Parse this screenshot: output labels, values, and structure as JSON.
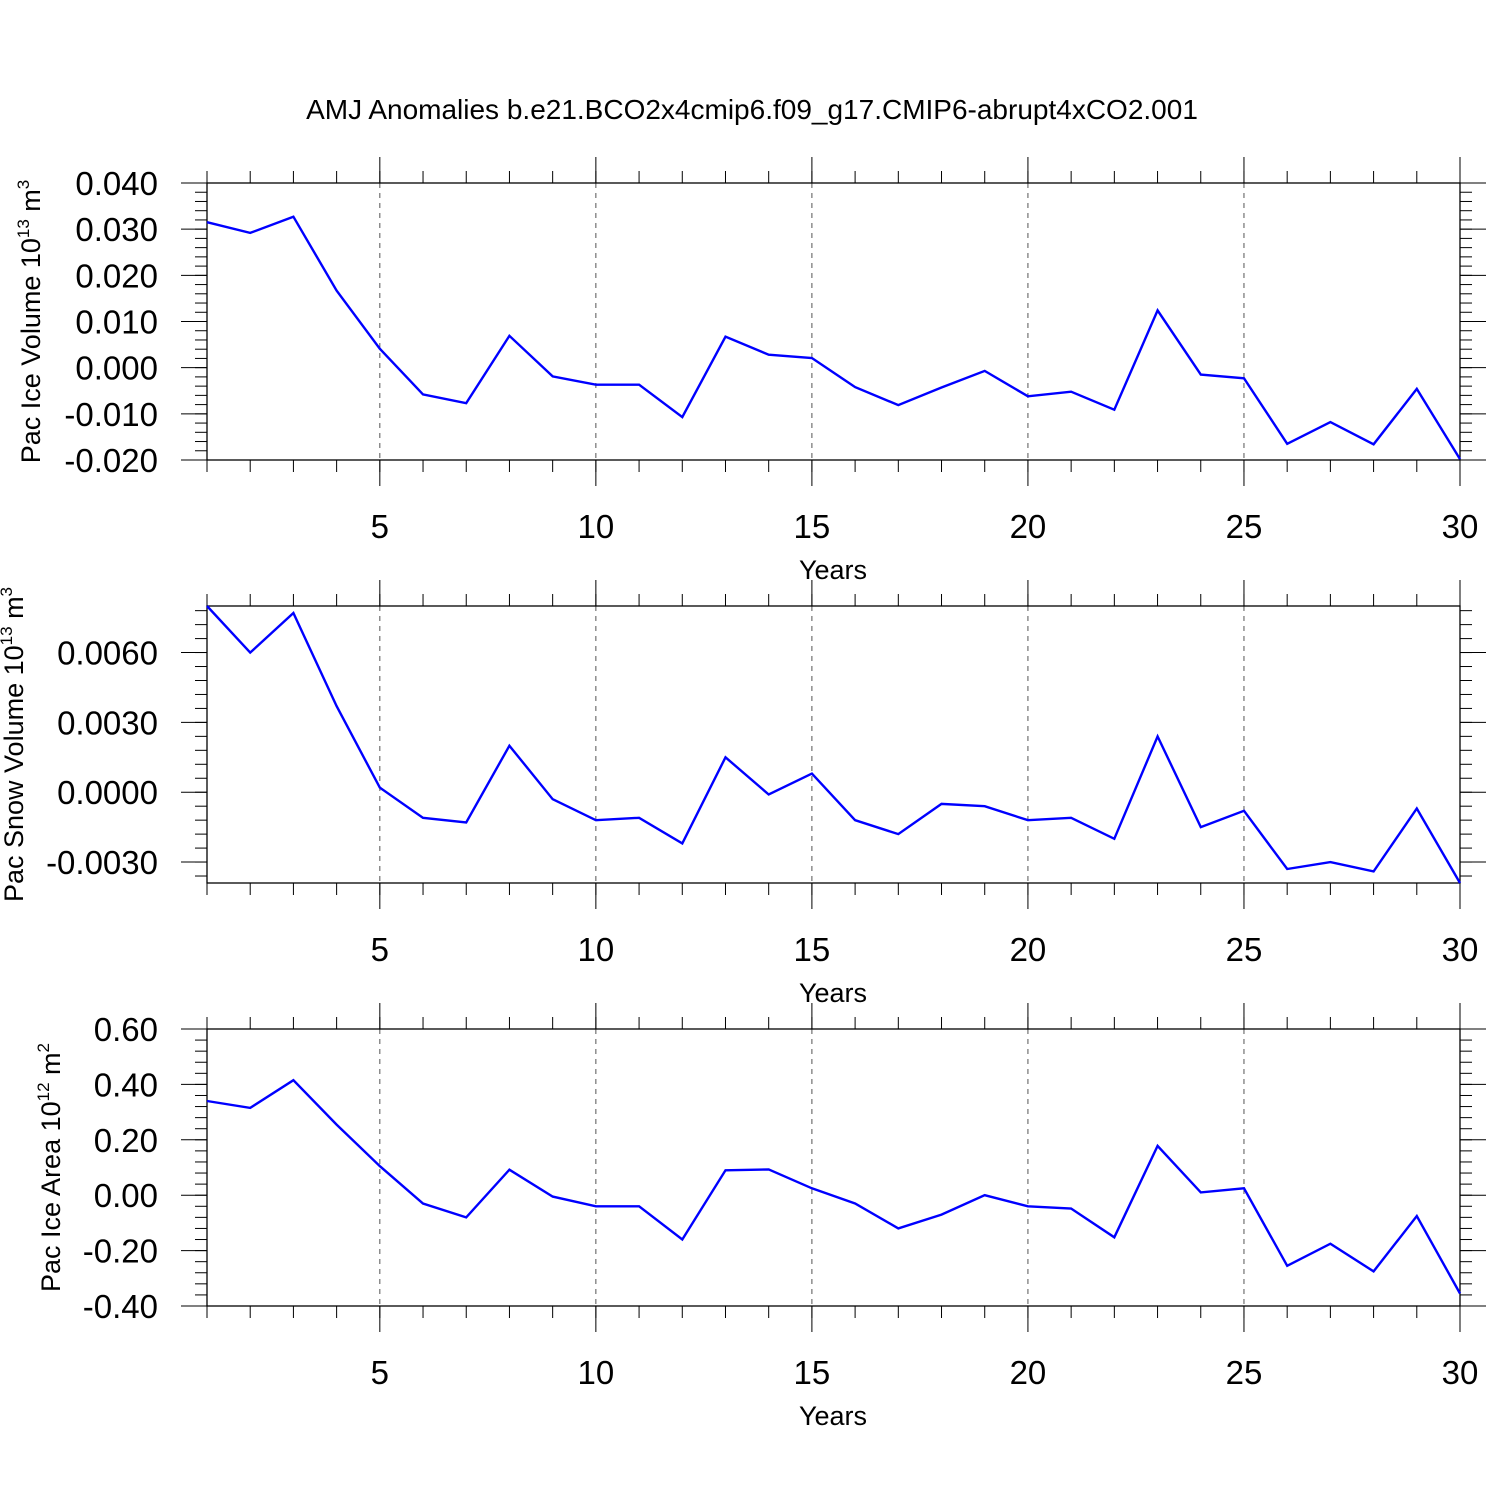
{
  "figure_title": "AMJ Anomalies b.e21.BCO2x4cmip6.f09_g17.CMIP6-abrupt4xCO2.001",
  "colors": {
    "series": "#0000ff",
    "axes": "#000000",
    "background": "#ffffff"
  },
  "chart_data": [
    {
      "type": "line",
      "title": "",
      "xlabel": "Years",
      "ylabel": {
        "text": "Pac Ice Volume 10",
        "superscript": "13",
        "unit": "m",
        "unit_superscript": "3"
      },
      "xlim": [
        1,
        30
      ],
      "ylim": [
        -0.02,
        0.04
      ],
      "xticks": [
        5,
        10,
        15,
        20,
        25,
        30
      ],
      "xtick_labels": [
        "5",
        "10",
        "15",
        "20",
        "25",
        "30"
      ],
      "yticks": [
        -0.02,
        -0.01,
        0.0,
        0.01,
        0.02,
        0.03,
        0.04
      ],
      "ytick_labels": [
        "-0.020",
        "-0.010",
        "0.000",
        "0.010",
        "0.020",
        "0.030",
        "0.040"
      ],
      "vertical_dashed_grid": true,
      "x": [
        1,
        2,
        3,
        4,
        5,
        6,
        7,
        8,
        9,
        10,
        11,
        12,
        13,
        14,
        15,
        16,
        17,
        18,
        19,
        20,
        21,
        22,
        23,
        24,
        25,
        26,
        27,
        28,
        29,
        30
      ],
      "series": [
        {
          "values": [
            0.0315,
            0.0292,
            0.0327,
            0.0167,
            0.0041,
            -0.0058,
            -0.0077,
            0.0069,
            -0.0019,
            -0.0037,
            -0.0037,
            -0.0107,
            0.0067,
            0.0028,
            0.0021,
            -0.0042,
            -0.0081,
            -0.0043,
            -0.0007,
            -0.0062,
            -0.0052,
            -0.0091,
            0.0124,
            -0.0015,
            -0.0023,
            -0.0165,
            -0.0118,
            -0.0166,
            -0.0046,
            -0.0198
          ]
        }
      ]
    },
    {
      "type": "line",
      "title": "",
      "xlabel": "Years",
      "ylabel": {
        "text": "Pac Snow Volume 10",
        "superscript": "13",
        "unit": "m",
        "unit_superscript": "3"
      },
      "xlim": [
        1,
        30
      ],
      "ylim": [
        -0.0039,
        0.008
      ],
      "xticks": [
        5,
        10,
        15,
        20,
        25,
        30
      ],
      "xtick_labels": [
        "5",
        "10",
        "15",
        "20",
        "25",
        "30"
      ],
      "yticks": [
        -0.003,
        0.0,
        0.003,
        0.006
      ],
      "ytick_labels": [
        "-0.0030",
        "0.0000",
        "0.0030",
        "0.0060"
      ],
      "vertical_dashed_grid": true,
      "x": [
        1,
        2,
        3,
        4,
        5,
        6,
        7,
        8,
        9,
        10,
        11,
        12,
        13,
        14,
        15,
        16,
        17,
        18,
        19,
        20,
        21,
        22,
        23,
        24,
        25,
        26,
        27,
        28,
        29,
        30
      ],
      "series": [
        {
          "values": [
            0.008,
            0.006,
            0.0077,
            0.0037,
            0.0002,
            -0.0011,
            -0.0013,
            0.002,
            -0.0003,
            -0.0012,
            -0.0011,
            -0.0022,
            0.0015,
            -0.0001,
            0.0008,
            -0.0012,
            -0.0018,
            -0.0005,
            -0.0006,
            -0.0012,
            -0.0011,
            -0.002,
            0.0024,
            -0.0015,
            -0.0008,
            -0.0033,
            -0.003,
            -0.0034,
            -0.0007,
            -0.0039
          ]
        }
      ]
    },
    {
      "type": "line",
      "title": "",
      "xlabel": "Years",
      "ylabel": {
        "text": "Pac Ice Area 10",
        "superscript": "12",
        "unit": "m",
        "unit_superscript": "2"
      },
      "xlim": [
        1,
        30
      ],
      "ylim": [
        -0.4,
        0.6
      ],
      "xticks": [
        5,
        10,
        15,
        20,
        25,
        30
      ],
      "xtick_labels": [
        "5",
        "10",
        "15",
        "20",
        "25",
        "30"
      ],
      "yticks": [
        -0.4,
        -0.2,
        0.0,
        0.2,
        0.4,
        0.6
      ],
      "ytick_labels": [
        "-0.40",
        "-0.20",
        "0.00",
        "0.20",
        "0.40",
        "0.60"
      ],
      "vertical_dashed_grid": true,
      "x": [
        1,
        2,
        3,
        4,
        5,
        6,
        7,
        8,
        9,
        10,
        11,
        12,
        13,
        14,
        15,
        16,
        17,
        18,
        19,
        20,
        21,
        22,
        23,
        24,
        25,
        26,
        27,
        28,
        29,
        30
      ],
      "series": [
        {
          "values": [
            0.34,
            0.315,
            0.415,
            0.255,
            0.105,
            -0.03,
            -0.08,
            0.092,
            -0.005,
            -0.04,
            -0.04,
            -0.16,
            0.09,
            0.093,
            0.025,
            -0.03,
            -0.12,
            -0.07,
            0.0,
            -0.04,
            -0.048,
            -0.152,
            0.178,
            0.01,
            0.025,
            -0.255,
            -0.175,
            -0.275,
            -0.075,
            -0.355
          ]
        }
      ]
    }
  ]
}
